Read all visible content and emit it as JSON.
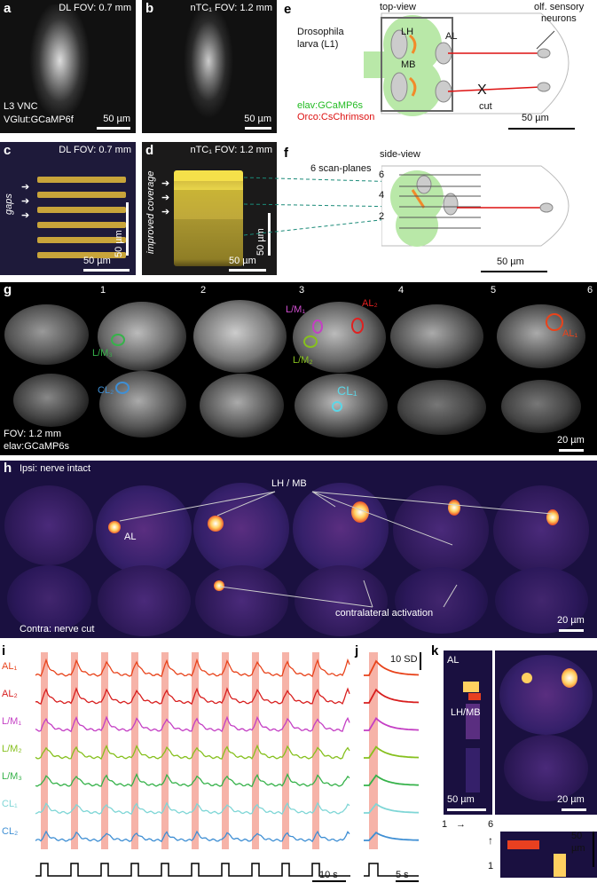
{
  "a": {
    "label": "a",
    "fov": "DL FOV: 0.7 mm",
    "line1": "L3 VNC",
    "line2": "VGlut:GCaMP6f",
    "scale": "50 µm"
  },
  "b": {
    "label": "b",
    "fov": "nTC₁ FOV: 1.2 mm",
    "scale": "50 µm"
  },
  "c": {
    "label": "c",
    "fov": "DL FOV: 0.7 mm",
    "gaps": "gaps",
    "scale_v": "50 µm",
    "scale_h": "50 µm"
  },
  "d": {
    "label": "d",
    "fov": "nTC₁ FOV: 1.2 mm",
    "coverage": "improved coverage",
    "scale_v": "50 µm",
    "scale_h": "50 µm"
  },
  "e": {
    "label": "e",
    "view": "top-view",
    "organism1": "Drosophila",
    "organism2": "larva (L1)",
    "LH": "LH",
    "MB": "MB",
    "AL": "AL",
    "neurons1": "olf. sensory",
    "neurons2": "neurons",
    "geno1": "elav:GCaMP6s",
    "geno2": "Orco:CsChrimson",
    "cut_mark": "X",
    "cut": "cut",
    "scale": "50 µm",
    "color_green": "#22bb22",
    "color_red": "#dd1111"
  },
  "f": {
    "label": "f",
    "view": "side-view",
    "planes": "6 scan-planes",
    "p6": "6",
    "p4": "4",
    "p2": "2",
    "scale": "50 µm"
  },
  "g": {
    "label": "g",
    "cols": [
      "1",
      "2",
      "3",
      "4",
      "5",
      "6"
    ],
    "fov": "FOV: 1.2 mm",
    "geno": "elav:GCaMP6s",
    "scale": "20 µm",
    "rois": {
      "LM1": "L/M₁",
      "AL2": "AL₂",
      "LM3": "L/M₃",
      "LM2": "L/M₂",
      "AL1": "AL₁",
      "CL2": "CL₂",
      "CL1": "CL₁"
    }
  },
  "h": {
    "label": "h",
    "ipsi": "Ipsi: nerve intact",
    "lhmb": "LH / MB",
    "al": "AL",
    "contra": "Contra: nerve cut",
    "activation": "contralateral activation",
    "scale": "20 µm"
  },
  "i": {
    "label": "i",
    "traces": [
      {
        "name": "AL₁",
        "color": "#e8431b"
      },
      {
        "name": "AL₂",
        "color": "#d81e1e"
      },
      {
        "name": "L/M₁",
        "color": "#c43fc4"
      },
      {
        "name": "L/M₂",
        "color": "#86c01e"
      },
      {
        "name": "L/M₃",
        "color": "#36b24a"
      },
      {
        "name": "CL₁",
        "color": "#7fd6d6"
      },
      {
        "name": "CL₂",
        "color": "#3f8fd4"
      }
    ],
    "scale": "10 s",
    "stim_color": "#f6b3a8"
  },
  "j": {
    "label": "j",
    "sd": "10 SD",
    "scale": "5 s"
  },
  "k": {
    "label": "k",
    "al": "AL",
    "lhmb": "LH/MB",
    "scale1": "50 µm",
    "scale2": "20 µm",
    "from": "1",
    "arrow": "→",
    "to": "6",
    "v1": "1",
    "v2": "50",
    "v3": "µm"
  }
}
